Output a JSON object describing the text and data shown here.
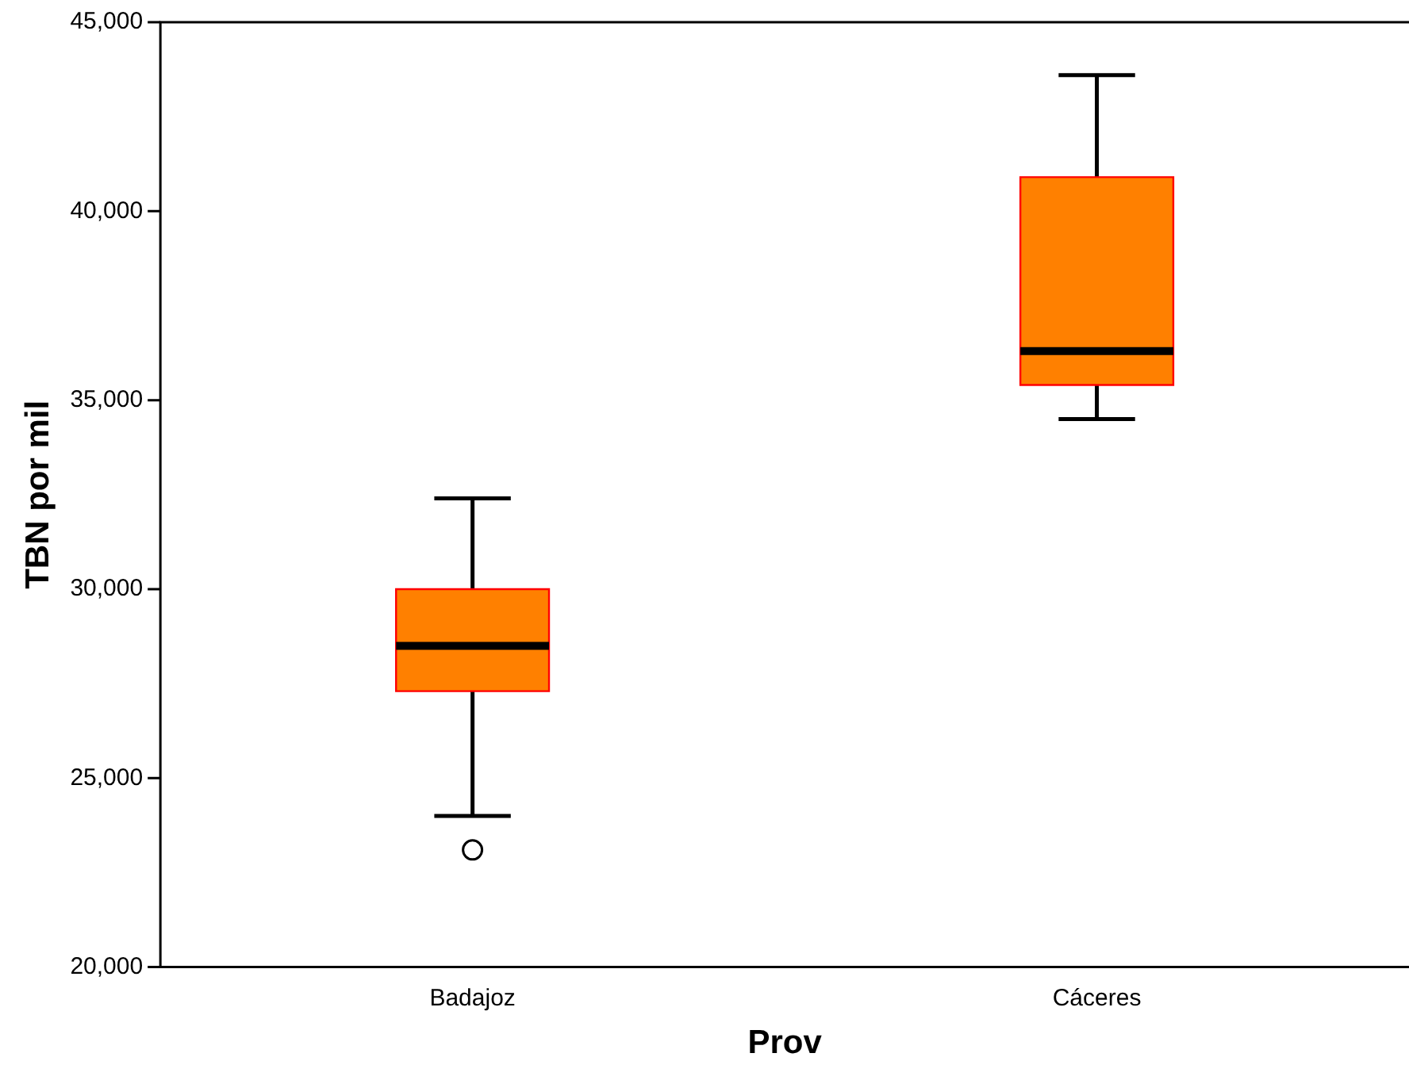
{
  "chart_data": {
    "type": "box",
    "xlabel": "Prov",
    "ylabel": "TBN por mil",
    "categories": [
      "Badajoz",
      "Cáceres"
    ],
    "color": "#ff8000",
    "boxes": [
      {
        "low": 24000,
        "q1": 27300,
        "median": 28500,
        "q3": 30000,
        "high": 32400,
        "outliers": [
          23100
        ]
      },
      {
        "low": 34500,
        "q1": 35400,
        "median": 36300,
        "q3": 40900,
        "high": 43600
      }
    ],
    "ylim": [
      20000,
      45000
    ],
    "yticks": [
      {
        "value": 20000,
        "label": "20,000"
      },
      {
        "value": 25000,
        "label": "25,000"
      },
      {
        "value": 30000,
        "label": "30,000"
      },
      {
        "value": 35000,
        "label": "35,000"
      },
      {
        "value": 40000,
        "label": "40,000"
      },
      {
        "value": 45000,
        "label": "45,000"
      }
    ]
  }
}
